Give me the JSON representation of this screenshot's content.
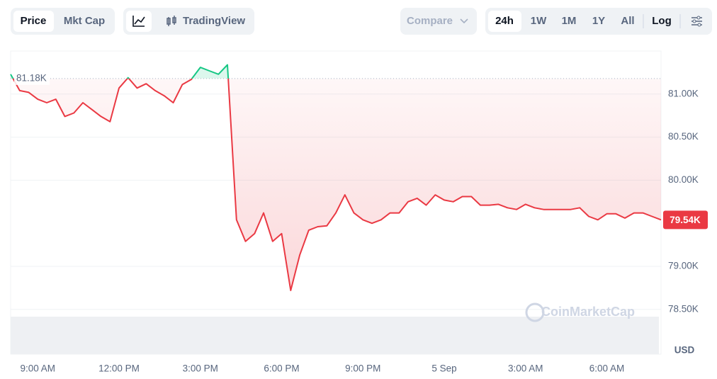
{
  "toolbar": {
    "metric_tabs": [
      "Price",
      "Mkt Cap"
    ],
    "selected_metric": 0,
    "chart_style": "TradingView",
    "compare": "Compare",
    "ranges": [
      "24h",
      "1W",
      "1M",
      "1Y",
      "All"
    ],
    "selected_range": 0,
    "scale": "Log"
  },
  "chart_data": {
    "type": "line",
    "watermark": "CoinMarketCap",
    "y_unit": "USD",
    "categories": [
      null,
      null,
      null,
      "9:00 AM",
      null,
      null,
      null,
      null,
      null,
      null,
      null,
      null,
      "12:00 PM",
      null,
      null,
      null,
      null,
      null,
      null,
      null,
      null,
      "3:00 PM",
      null,
      null,
      null,
      null,
      null,
      null,
      null,
      null,
      "6:00 PM",
      null,
      null,
      null,
      null,
      null,
      null,
      null,
      null,
      "9:00 PM",
      null,
      null,
      null,
      null,
      null,
      null,
      null,
      null,
      "5 Sep",
      null,
      null,
      null,
      null,
      null,
      null,
      null,
      null,
      "3:00 AM",
      null,
      null,
      null,
      null,
      null,
      null,
      null,
      null,
      "6:00 AM",
      null,
      null,
      null,
      null,
      null,
      null
    ],
    "series": [
      {
        "color_up": "#16c784",
        "color_down": "#ea3943",
        "values": [
          81230,
          81040,
          81020,
          80940,
          80900,
          80940,
          80740,
          80780,
          80900,
          80820,
          80740,
          80680,
          81070,
          81190,
          81070,
          81120,
          81040,
          80980,
          80900,
          81110,
          81170,
          81310,
          81270,
          81230,
          81340,
          79540,
          79290,
          79380,
          79620,
          79290,
          79380,
          78720,
          79130,
          79420,
          79460,
          79470,
          79620,
          79830,
          79620,
          79540,
          79500,
          79540,
          79620,
          79620,
          79750,
          79790,
          79710,
          79830,
          79770,
          79750,
          79810,
          79810,
          79710,
          79710,
          79720,
          79680,
          79660,
          79720,
          79680,
          79660,
          79660,
          79660,
          79660,
          79680,
          79580,
          79540,
          79610,
          79610,
          79560,
          79620,
          79620,
          79580,
          79540
        ]
      }
    ],
    "reference_line": {
      "value": 81180,
      "label": "81.18K"
    },
    "last_price": {
      "value": 79540,
      "label": "79.54K"
    },
    "ylim": [
      77980,
      81500
    ],
    "yticks": [
      {
        "value": 78500,
        "label": "78.50K"
      },
      {
        "value": 79000,
        "label": "79.00K"
      },
      {
        "value": 80000,
        "label": "80.00K"
      },
      {
        "value": 80500,
        "label": "80.50K"
      },
      {
        "value": 81000,
        "label": "81.00K"
      }
    ],
    "grid": true
  }
}
